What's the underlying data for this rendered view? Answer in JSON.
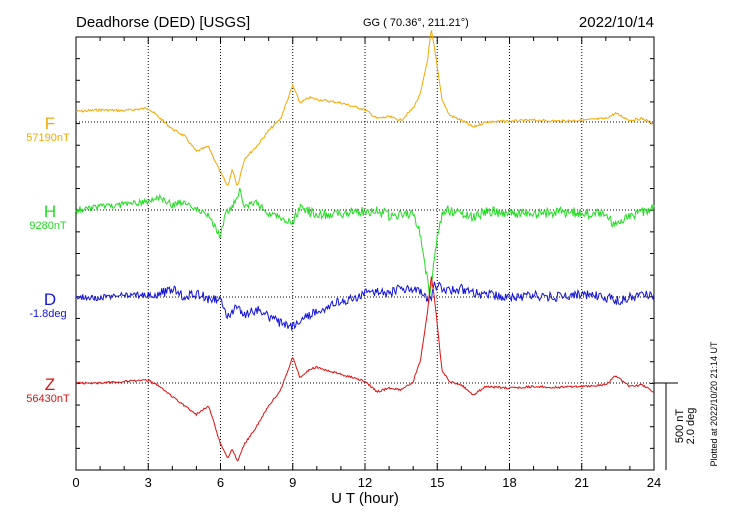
{
  "header": {
    "station": "Deadhorse (DED)  [USGS]",
    "coords": "GG ( 70.36°, 211.21°)",
    "date": "2022/10/14"
  },
  "footer": {
    "plotted_note": "Plotted at 2022/10/20 21:14 UT"
  },
  "chart_data": {
    "type": "line",
    "title": "Deadhorse (DED)  [USGS]",
    "xlabel": "U T (hour)",
    "xlim": [
      0,
      24
    ],
    "xticks": [
      "0",
      "3",
      "6",
      "9",
      "12",
      "15",
      "18",
      "21",
      "24"
    ],
    "grid": true,
    "scale_bar": {
      "line1": "500 nT",
      "line2": "2.0 deg"
    },
    "series": [
      {
        "name": "F",
        "baseline_label": "57190nT",
        "unit": "nT",
        "color": "#f5a800",
        "x": [
          0,
          1,
          2,
          3,
          3.5,
          4,
          4.5,
          5,
          5.5,
          6,
          6.3,
          6.5,
          6.7,
          7,
          7.5,
          8,
          8.5,
          9,
          9.3,
          9.7,
          10,
          11,
          11.5,
          12,
          12.5,
          13,
          13.5,
          14,
          14.3,
          14.6,
          14.75,
          14.9,
          15.2,
          15.5,
          16,
          16.5,
          17,
          18,
          19,
          20,
          21,
          22,
          22.4,
          23,
          23.5,
          24
        ],
        "y": [
          57250,
          57260,
          57255,
          57270,
          57210,
          57150,
          57110,
          57020,
          57050,
          56900,
          56820,
          56920,
          56820,
          56980,
          57050,
          57140,
          57210,
          57400,
          57300,
          57330,
          57320,
          57300,
          57280,
          57260,
          57210,
          57220,
          57200,
          57270,
          57350,
          57550,
          57720,
          57600,
          57320,
          57230,
          57200,
          57160,
          57190,
          57195,
          57200,
          57195,
          57200,
          57210,
          57240,
          57200,
          57210,
          57180
        ]
      },
      {
        "name": "H",
        "baseline_label": "9280nT",
        "unit": "nT",
        "color": "#22dd22",
        "x": [
          0,
          1,
          2,
          3,
          3.5,
          4,
          4.5,
          5,
          5.5,
          5.8,
          6,
          6.2,
          6.5,
          6.8,
          7,
          7.5,
          8,
          8.5,
          9,
          9.3,
          9.7,
          10,
          11,
          12,
          12.5,
          13,
          13.5,
          14,
          14.2,
          14.5,
          14.7,
          14.9,
          15.2,
          15.5,
          16,
          16.5,
          17,
          18,
          19,
          20,
          21,
          22,
          22.3,
          23,
          23.5,
          24
        ],
        "y": [
          9280,
          9300,
          9310,
          9330,
          9350,
          9310,
          9330,
          9290,
          9250,
          9180,
          9130,
          9260,
          9300,
          9390,
          9300,
          9320,
          9260,
          9240,
          9200,
          9290,
          9270,
          9250,
          9260,
          9270,
          9275,
          9250,
          9260,
          9250,
          9200,
          8950,
          8780,
          9030,
          9260,
          9280,
          9260,
          9240,
          9270,
          9265,
          9260,
          9270,
          9265,
          9250,
          9200,
          9250,
          9260,
          9300
        ]
      },
      {
        "name": "D",
        "baseline_label": "-1.8deg",
        "unit": "deg",
        "color": "#1414dd",
        "x": [
          0,
          1,
          2,
          3,
          3.5,
          4,
          4.5,
          5,
          5.5,
          6,
          6.3,
          6.7,
          7,
          7.5,
          8,
          8.5,
          9,
          9.3,
          9.7,
          10,
          10.5,
          11,
          11.5,
          12,
          12.5,
          13,
          13.5,
          14,
          14.3,
          14.6,
          14.75,
          14.9,
          15.2,
          15.5,
          16,
          16.5,
          17,
          18,
          19,
          20,
          21,
          22,
          22.5,
          23,
          23.5,
          24
        ],
        "y": [
          -1.8,
          -1.82,
          -1.76,
          -1.75,
          -1.72,
          -1.62,
          -1.78,
          -1.72,
          -1.85,
          -1.9,
          -2.22,
          -2.05,
          -2.18,
          -2.1,
          -2.25,
          -2.4,
          -2.5,
          -2.35,
          -2.2,
          -2.12,
          -2.0,
          -1.9,
          -1.85,
          -1.72,
          -1.65,
          -1.72,
          -1.6,
          -1.6,
          -1.7,
          -1.9,
          -1.8,
          -1.5,
          -1.62,
          -1.65,
          -1.62,
          -1.72,
          -1.75,
          -1.8,
          -1.76,
          -1.8,
          -1.75,
          -1.8,
          -1.88,
          -1.82,
          -1.76,
          -1.77
        ]
      },
      {
        "name": "Z",
        "baseline_label": "56430nT",
        "unit": "nT",
        "color": "#e01010",
        "x": [
          0,
          1,
          2,
          3,
          3.5,
          4,
          4.5,
          5,
          5.5,
          6,
          6.3,
          6.5,
          6.7,
          7,
          7.5,
          8,
          8.5,
          9,
          9.3,
          9.7,
          10,
          11,
          11.5,
          12,
          12.5,
          13,
          13.5,
          14,
          14.3,
          14.6,
          14.75,
          14.9,
          15.2,
          15.5,
          16,
          16.5,
          17,
          18,
          19,
          20,
          21,
          22,
          22.4,
          23,
          23.5,
          24
        ],
        "y": [
          56430,
          56430,
          56440,
          56445,
          56410,
          56350,
          56300,
          56250,
          56300,
          56080,
          56000,
          56050,
          55980,
          56080,
          56180,
          56300,
          56390,
          56580,
          56460,
          56510,
          56520,
          56480,
          56460,
          56440,
          56380,
          56400,
          56390,
          56440,
          56560,
          56840,
          57050,
          56900,
          56500,
          56440,
          56420,
          56360,
          56410,
          56400,
          56410,
          56405,
          56410,
          56420,
          56470,
          56410,
          56420,
          56380
        ]
      }
    ]
  }
}
